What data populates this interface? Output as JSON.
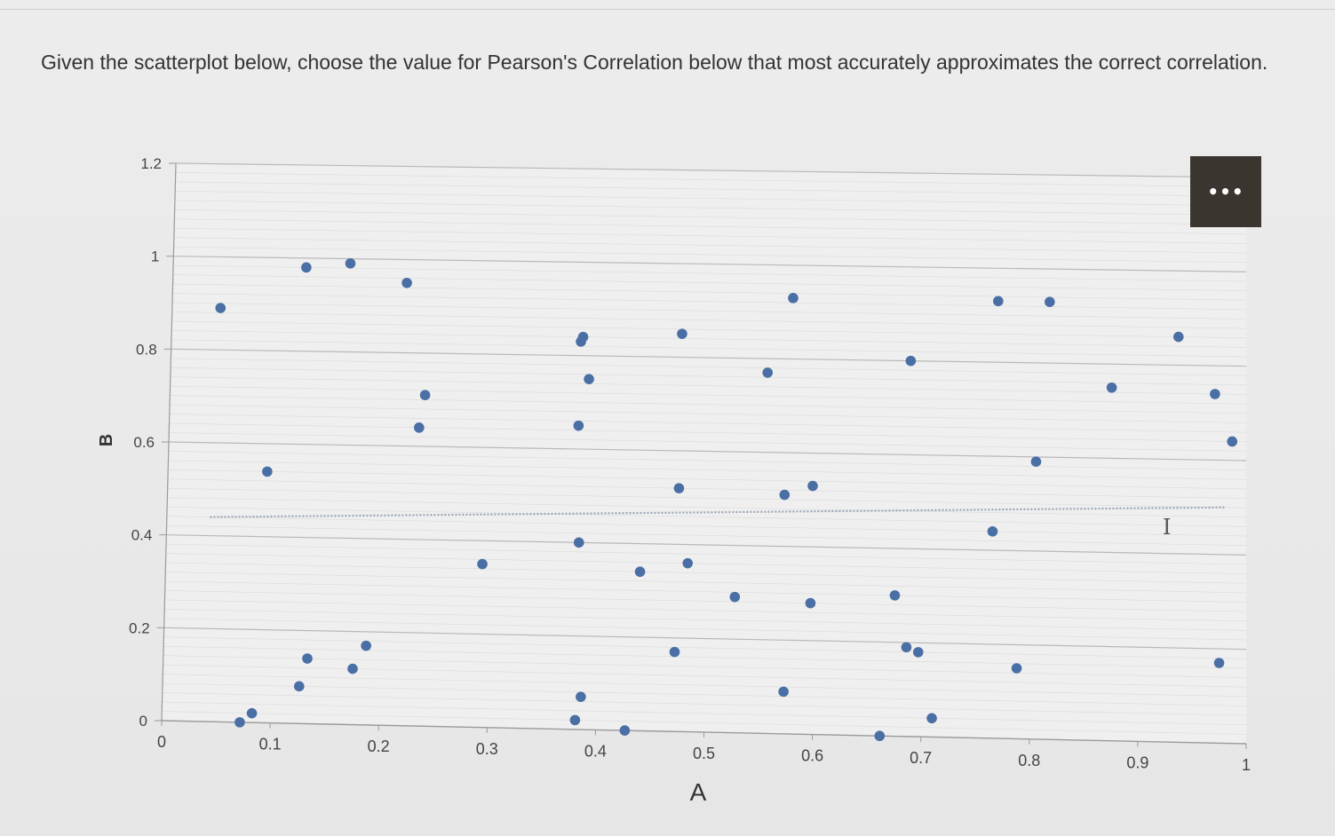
{
  "question": "Given the scatterplot below, choose the value for Pearson's Correlation below that most accurately approximates the correct correlation.",
  "more_button": {
    "label": "•••",
    "icon": "more-options-icon"
  },
  "cursor": {
    "icon": "text-cursor-icon",
    "glyph": "I"
  },
  "colors": {
    "point": "#4a6fa5",
    "grid": "#d2d2d2",
    "axis": "#9a9a9a",
    "trendline": "#9aa6b4"
  },
  "chart_data": {
    "type": "scatter",
    "title": "",
    "xlabel": "A",
    "ylabel": "B",
    "xlim": [
      0,
      1
    ],
    "ylim": [
      0,
      1.2
    ],
    "xticks": [
      "0",
      "0.1",
      "0.2",
      "0.3",
      "0.4",
      "0.5",
      "0.6",
      "0.7",
      "0.8",
      "0.9",
      "1"
    ],
    "yticks": [
      "0",
      "0.2",
      "0.4",
      "0.6",
      "0.8",
      "1",
      "1.2"
    ],
    "grid": true,
    "legend": "none",
    "trendline": {
      "type": "linear",
      "style": "dotted",
      "x": [
        0.04,
        0.98
      ],
      "y": [
        0.44,
        0.5
      ]
    },
    "points": [
      {
        "x": 0.045,
        "y": 0.89
      },
      {
        "x": 0.072,
        "y": 0.0
      },
      {
        "x": 0.083,
        "y": 0.02
      },
      {
        "x": 0.092,
        "y": 0.54
      },
      {
        "x": 0.124,
        "y": 0.98
      },
      {
        "x": 0.126,
        "y": 0.08
      },
      {
        "x": 0.133,
        "y": 0.14
      },
      {
        "x": 0.165,
        "y": 0.99
      },
      {
        "x": 0.175,
        "y": 0.12
      },
      {
        "x": 0.187,
        "y": 0.17
      },
      {
        "x": 0.218,
        "y": 0.95
      },
      {
        "x": 0.232,
        "y": 0.64
      },
      {
        "x": 0.237,
        "y": 0.71
      },
      {
        "x": 0.293,
        "y": 0.35
      },
      {
        "x": 0.383,
        "y": 0.84
      },
      {
        "x": 0.381,
        "y": 0.83
      },
      {
        "x": 0.389,
        "y": 0.75
      },
      {
        "x": 0.38,
        "y": 0.65
      },
      {
        "x": 0.382,
        "y": 0.4
      },
      {
        "x": 0.381,
        "y": 0.02
      },
      {
        "x": 0.386,
        "y": 0.07
      },
      {
        "x": 0.427,
        "y": 0.0
      },
      {
        "x": 0.439,
        "y": 0.34
      },
      {
        "x": 0.475,
        "y": 0.85
      },
      {
        "x": 0.474,
        "y": 0.52
      },
      {
        "x": 0.472,
        "y": 0.17
      },
      {
        "x": 0.483,
        "y": 0.36
      },
      {
        "x": 0.527,
        "y": 0.29
      },
      {
        "x": 0.555,
        "y": 0.77
      },
      {
        "x": 0.572,
        "y": 0.51
      },
      {
        "x": 0.573,
        "y": 0.09
      },
      {
        "x": 0.578,
        "y": 0.93
      },
      {
        "x": 0.598,
        "y": 0.53
      },
      {
        "x": 0.597,
        "y": 0.28
      },
      {
        "x": 0.662,
        "y": 0.0
      },
      {
        "x": 0.675,
        "y": 0.3
      },
      {
        "x": 0.688,
        "y": 0.8
      },
      {
        "x": 0.686,
        "y": 0.19
      },
      {
        "x": 0.697,
        "y": 0.18
      },
      {
        "x": 0.71,
        "y": 0.04
      },
      {
        "x": 0.769,
        "y": 0.93
      },
      {
        "x": 0.765,
        "y": 0.44
      },
      {
        "x": 0.788,
        "y": 0.15
      },
      {
        "x": 0.805,
        "y": 0.59
      },
      {
        "x": 0.817,
        "y": 0.93
      },
      {
        "x": 0.875,
        "y": 0.75
      },
      {
        "x": 0.937,
        "y": 0.86
      },
      {
        "x": 0.971,
        "y": 0.74
      },
      {
        "x": 0.987,
        "y": 0.64
      },
      {
        "x": 0.975,
        "y": 0.17
      }
    ]
  }
}
